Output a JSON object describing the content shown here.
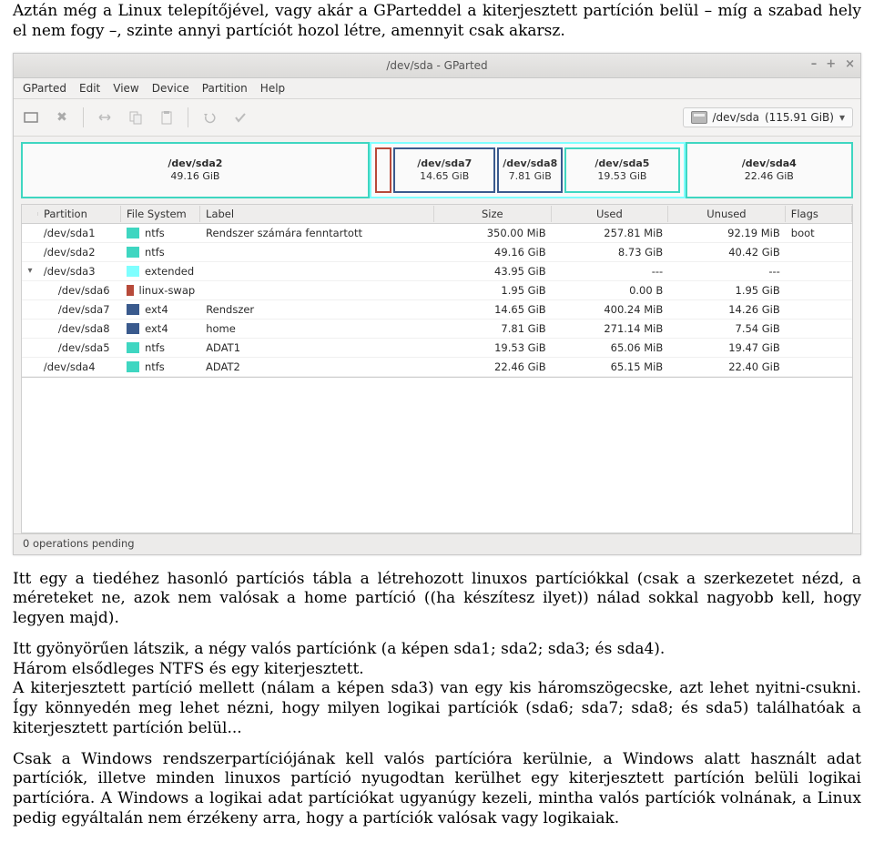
{
  "doc": {
    "p1": "Aztán még a Linux telepítőjével, vagy akár a GParteddel a kiterjesztett partíción belül – míg a szabad hely el nem fogy –, szinte annyi partíciót hozol létre, amennyit csak akarsz.",
    "p2": "Itt egy a tiedéhez hasonló partíciós tábla a létrehozott linuxos partíciókkal (csak a szerkezetet nézd, a méreteket ne, azok nem valósak a home partíció ((ha készítesz ilyet)) nálad sokkal nagyobb kell, hogy legyen majd).",
    "p3": "Itt gyönyörűen látszik, a négy valós partíciónk (a képen sda1; sda2; sda3; és sda4).",
    "p4": "Három elsődleges NTFS és egy kiterjesztett.",
    "p5": "A kiterjesztett partíció mellett (nálam a képen sda3) van egy kis háromszögecske, azt lehet nyitni-csukni. Így könnyedén meg lehet nézni, hogy milyen logikai partíciók (sda6; sda7; sda8; és sda5) találhatóak a kiterjesztett partíción belül...",
    "p6": "Csak a Windows rendszerpartíciójának kell valós partícióra kerülnie, a Windows alatt használt adat partíciók, illetve minden linuxos partíció nyugodtan kerülhet egy kiterjesztett partíción belüli logikai partícióra. A Windows a logikai adat partíciókat ugyanúgy kezeli, mintha valós partíciók volnának, a Linux pedig egyáltalán nem érzékeny arra, hogy a partíciók valósak vagy logikaiak."
  },
  "window": {
    "title": "/dev/sda - GParted",
    "menu": [
      "GParted",
      "Edit",
      "View",
      "Device",
      "Partition",
      "Help"
    ],
    "device": {
      "name": "/dev/sda",
      "size": "(115.91 GiB)"
    },
    "status": "0 operations pending"
  },
  "fs_colors": {
    "ntfs": "#3fd6c1",
    "extended": "#7fffff",
    "linux-swap": "#b74a3a",
    "ext4": "#3a5a8d"
  },
  "disk_map": {
    "segments": [
      {
        "type": "primary",
        "color": "#3fd6c1",
        "flex": 42,
        "lines": [
          "/dev/sda2",
          "49.16 GiB"
        ]
      },
      {
        "type": "extended",
        "color": "#7fffff",
        "flex": 38,
        "children": [
          {
            "color": "#b74a3a",
            "flex": 2,
            "lines": [
              "",
              ""
            ]
          },
          {
            "color": "#3a5a8d",
            "flex": 15,
            "lines": [
              "/dev/sda7",
              "14.65 GiB"
            ]
          },
          {
            "color": "#3a5a8d",
            "flex": 8,
            "lines": [
              "/dev/sda8",
              "7.81 GiB"
            ]
          },
          {
            "color": "#3fd6c1",
            "flex": 17,
            "lines": [
              "/dev/sda5",
              "19.53 GiB"
            ]
          }
        ]
      },
      {
        "type": "primary",
        "color": "#3fd6c1",
        "flex": 20,
        "lines": [
          "/dev/sda4",
          "22.46 GiB"
        ]
      }
    ]
  },
  "columns": [
    "Partition",
    "File System",
    "Label",
    "Size",
    "Used",
    "Unused",
    "Flags"
  ],
  "rows": [
    {
      "toggle": "",
      "indent": 0,
      "part": "/dev/sda1",
      "fs": "ntfs",
      "label": "Rendszer számára fenntartott",
      "size": "350.00 MiB",
      "used": "257.81 MiB",
      "unused": "92.19 MiB",
      "flags": "boot"
    },
    {
      "toggle": "",
      "indent": 0,
      "part": "/dev/sda2",
      "fs": "ntfs",
      "label": "",
      "size": "49.16 GiB",
      "used": "8.73 GiB",
      "unused": "40.42 GiB",
      "flags": ""
    },
    {
      "toggle": "▾",
      "indent": 0,
      "part": "/dev/sda3",
      "fs": "extended",
      "label": "",
      "size": "43.95 GiB",
      "used": "---",
      "unused": "---",
      "flags": ""
    },
    {
      "toggle": "",
      "indent": 1,
      "part": "/dev/sda6",
      "fs": "linux-swap",
      "label": "",
      "size": "1.95 GiB",
      "used": "0.00 B",
      "unused": "1.95 GiB",
      "flags": ""
    },
    {
      "toggle": "",
      "indent": 1,
      "part": "/dev/sda7",
      "fs": "ext4",
      "label": "Rendszer",
      "size": "14.65 GiB",
      "used": "400.24 MiB",
      "unused": "14.26 GiB",
      "flags": ""
    },
    {
      "toggle": "",
      "indent": 1,
      "part": "/dev/sda8",
      "fs": "ext4",
      "label": "home",
      "size": "7.81 GiB",
      "used": "271.14 MiB",
      "unused": "7.54 GiB",
      "flags": ""
    },
    {
      "toggle": "",
      "indent": 1,
      "part": "/dev/sda5",
      "fs": "ntfs",
      "label": "ADAT1",
      "size": "19.53 GiB",
      "used": "65.06 MiB",
      "unused": "19.47 GiB",
      "flags": ""
    },
    {
      "toggle": "",
      "indent": 0,
      "part": "/dev/sda4",
      "fs": "ntfs",
      "label": "ADAT2",
      "size": "22.46 GiB",
      "used": "65.15 MiB",
      "unused": "22.40 GiB",
      "flags": ""
    }
  ]
}
